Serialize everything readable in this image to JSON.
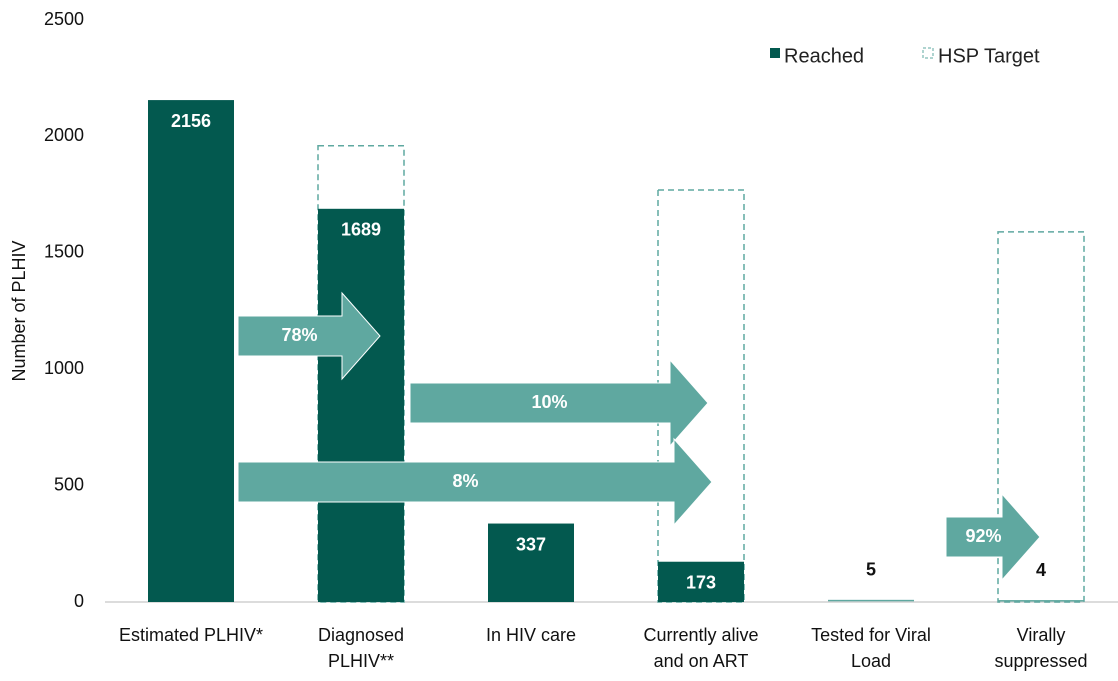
{
  "chart_data": {
    "type": "bar",
    "y_label": "Number of PLHIV",
    "categories": [
      "Estimated PLHIV*",
      "Diagnosed\nPLHIV**",
      "In HIV care",
      "Currently alive\nand on ART",
      "Tested for Viral\nLoad",
      "Virally\nsuppressed"
    ],
    "series": [
      {
        "name": "Reached",
        "color": "#03594f",
        "values": [
          2156,
          1689,
          337,
          173,
          5,
          4
        ]
      },
      {
        "name": "HSP Target",
        "color": "#5fa8a0",
        "values": [
          null,
          1960,
          null,
          1770,
          null,
          1590
        ]
      }
    ],
    "annotations": [
      "78%",
      "10%",
      "8%",
      "92%"
    ],
    "arrow_color": "#5fa8a0",
    "ylim": [
      0,
      2500
    ],
    "yticks": [
      0,
      500,
      1000,
      1500,
      2000,
      2500
    ],
    "legend": "top-right"
  }
}
